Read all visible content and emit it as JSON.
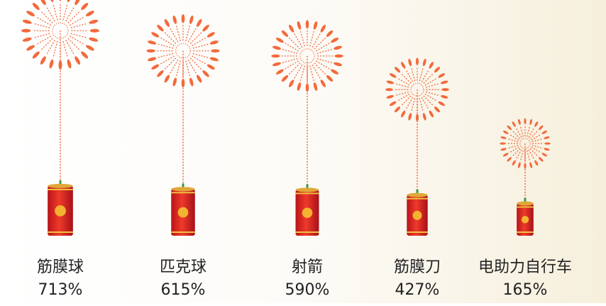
{
  "chart_data": {
    "type": "bar",
    "categories": [
      "筋膜球",
      "匹克球",
      "射箭",
      "筋膜刀",
      "电助力自行车"
    ],
    "values": [
      713,
      615,
      590,
      427,
      165
    ],
    "value_labels": [
      "713%",
      "615%",
      "590%",
      "427%",
      "165%"
    ],
    "color": "#e8472a",
    "firework_color": "#f26a3c"
  }
}
